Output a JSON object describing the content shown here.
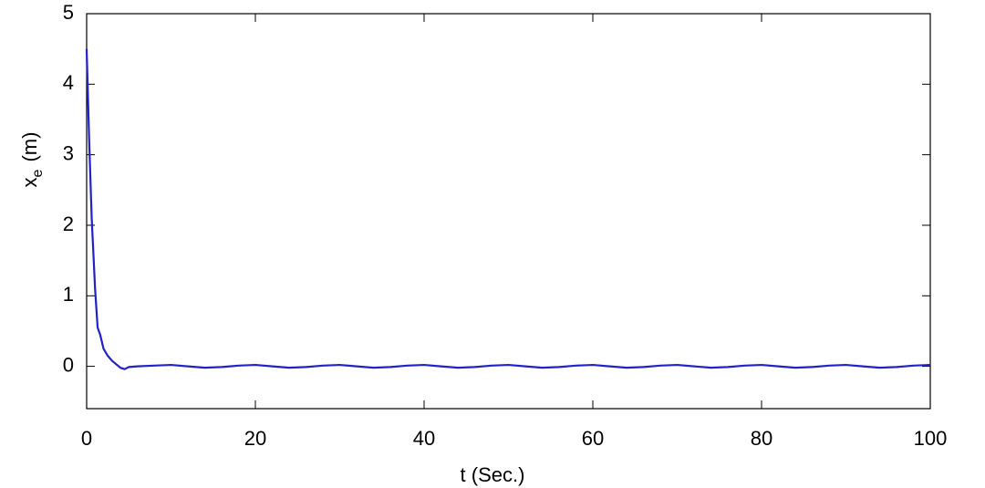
{
  "chart_data": {
    "type": "line",
    "xlabel": "t (Sec.)",
    "ylabel": {
      "base": "x",
      "sub": "e",
      "unit": "(m)"
    },
    "x": [
      0,
      0.3,
      0.6,
      1,
      1.3,
      1.6,
      2,
      2.5,
      3,
      3.5,
      4,
      4.5,
      5,
      6,
      8,
      10,
      12,
      14,
      16,
      18,
      20,
      22,
      24,
      26,
      28,
      30,
      32,
      34,
      36,
      38,
      40,
      42,
      44,
      46,
      48,
      50,
      52,
      54,
      56,
      58,
      60,
      62,
      64,
      66,
      68,
      70,
      72,
      74,
      76,
      78,
      80,
      82,
      84,
      86,
      88,
      90,
      92,
      94,
      96,
      98,
      100
    ],
    "series": [
      {
        "name": "x_e",
        "color": "#2222c8",
        "values": [
          4.5,
          3.2,
          2.1,
          1.1,
          0.55,
          0.45,
          0.25,
          0.15,
          0.08,
          0.03,
          -0.02,
          -0.04,
          -0.01,
          0,
          0.01,
          0.02,
          0,
          -0.02,
          -0.01,
          0.01,
          0.02,
          0,
          -0.02,
          -0.01,
          0.01,
          0.02,
          0,
          -0.02,
          -0.01,
          0.01,
          0.02,
          0,
          -0.02,
          -0.01,
          0.01,
          0.02,
          0,
          -0.02,
          -0.01,
          0.01,
          0.02,
          0,
          -0.02,
          -0.01,
          0.01,
          0.02,
          0,
          -0.02,
          -0.01,
          0.01,
          0.02,
          0,
          -0.02,
          -0.01,
          0.01,
          0.02,
          0,
          -0.02,
          -0.01,
          0.01,
          0.02
        ]
      }
    ],
    "xlim": [
      0,
      100
    ],
    "xticks": [
      0,
      20,
      40,
      60,
      80,
      100
    ],
    "ylim": [
      -0.6,
      5
    ],
    "yticks": [
      0,
      1,
      2,
      3,
      4,
      5
    ],
    "grid": false
  }
}
